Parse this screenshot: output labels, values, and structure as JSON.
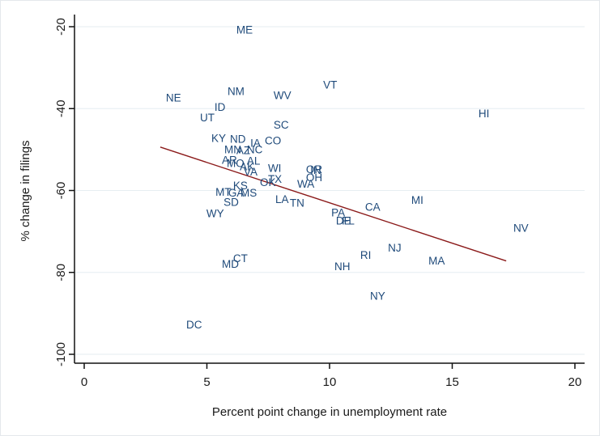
{
  "chart_data": {
    "type": "scatter",
    "title": "",
    "xlabel": "Percent point change in unemployment rate",
    "ylabel": "% change in filings",
    "xlim": [
      0,
      20
    ],
    "ylim": [
      -100,
      -20
    ],
    "xticks": [
      "0",
      "5",
      "10",
      "15",
      "20"
    ],
    "xtick_values": [
      0,
      5,
      10,
      15,
      20
    ],
    "yticks": [
      "-20",
      "-40",
      "-60",
      "-80",
      "-100"
    ],
    "ytick_values": [
      -20,
      -40,
      -60,
      -80,
      -100
    ],
    "grid": "horizontal",
    "marker": "state-abbreviation labels",
    "label_color": "#1f4a7a",
    "fit_line": {
      "name": "Linear fit",
      "color": "#8b1a1a",
      "x": [
        3.1,
        17.2
      ],
      "y": [
        -49.4,
        -77.2
      ]
    },
    "points": [
      {
        "label": "ME",
        "x": 6.2,
        "y": -21.0
      },
      {
        "label": "NE",
        "x": 3.33,
        "y": -37.6
      },
      {
        "label": "NM",
        "x": 5.84,
        "y": -36.0
      },
      {
        "label": "WV",
        "x": 7.72,
        "y": -37.0
      },
      {
        "label": "VT",
        "x": 9.74,
        "y": -34.4
      },
      {
        "label": "HI",
        "x": 16.07,
        "y": -41.4
      },
      {
        "label": "ID",
        "x": 5.31,
        "y": -39.8
      },
      {
        "label": "UT",
        "x": 4.72,
        "y": -42.4
      },
      {
        "label": "SC",
        "x": 7.72,
        "y": -44.2
      },
      {
        "label": "KY",
        "x": 5.18,
        "y": -47.4
      },
      {
        "label": "ND",
        "x": 5.94,
        "y": -47.6
      },
      {
        "label": "IA",
        "x": 6.77,
        "y": -48.6
      },
      {
        "label": "CO",
        "x": 7.36,
        "y": -48.0
      },
      {
        "label": "MN",
        "x": 5.71,
        "y": -50.2
      },
      {
        "label": "AZ",
        "x": 6.2,
        "y": -50.4
      },
      {
        "label": "NC",
        "x": 6.63,
        "y": -50.2
      },
      {
        "label": "AR",
        "x": 5.61,
        "y": -52.8
      },
      {
        "label": "MO",
        "x": 5.81,
        "y": -53.6
      },
      {
        "label": "AL",
        "x": 6.63,
        "y": -53.0
      },
      {
        "label": "AK",
        "x": 6.34,
        "y": -54.4
      },
      {
        "label": "VA",
        "x": 6.5,
        "y": -55.6
      },
      {
        "label": "WI",
        "x": 7.49,
        "y": -54.8
      },
      {
        "label": "TX",
        "x": 7.49,
        "y": -57.4
      },
      {
        "label": "OK",
        "x": 7.16,
        "y": -58.2
      },
      {
        "label": "OR",
        "x": 9.04,
        "y": -55.0
      },
      {
        "label": "IN",
        "x": 9.21,
        "y": -55.2
      },
      {
        "label": "OH",
        "x": 9.04,
        "y": -57.0
      },
      {
        "label": "WA",
        "x": 8.68,
        "y": -58.6
      },
      {
        "label": "KS",
        "x": 6.07,
        "y": -59.0
      },
      {
        "label": "MT",
        "x": 5.35,
        "y": -60.6
      },
      {
        "label": "GA",
        "x": 5.87,
        "y": -60.8
      },
      {
        "label": "MS",
        "x": 6.37,
        "y": -60.8
      },
      {
        "label": "SD",
        "x": 5.68,
        "y": -63.0
      },
      {
        "label": "LA",
        "x": 7.79,
        "y": -62.4
      },
      {
        "label": "TN",
        "x": 8.38,
        "y": -63.2
      },
      {
        "label": "WY",
        "x": 4.98,
        "y": -65.8
      },
      {
        "label": "MI",
        "x": 13.33,
        "y": -62.6
      },
      {
        "label": "CA",
        "x": 11.45,
        "y": -64.2
      },
      {
        "label": "PA",
        "x": 10.07,
        "y": -65.6
      },
      {
        "label": "DE",
        "x": 10.26,
        "y": -67.6
      },
      {
        "label": "FL",
        "x": 10.5,
        "y": -67.6
      },
      {
        "label": "NV",
        "x": 17.49,
        "y": -69.4
      },
      {
        "label": "NJ",
        "x": 12.38,
        "y": -74.2
      },
      {
        "label": "RI",
        "x": 11.25,
        "y": -76.0
      },
      {
        "label": "MA",
        "x": 14.03,
        "y": -77.4
      },
      {
        "label": "CT",
        "x": 6.07,
        "y": -76.8
      },
      {
        "label": "MD",
        "x": 5.61,
        "y": -78.2
      },
      {
        "label": "NH",
        "x": 10.2,
        "y": -78.8
      },
      {
        "label": "NY",
        "x": 11.65,
        "y": -86.0
      },
      {
        "label": "DC",
        "x": 4.16,
        "y": -93.0
      }
    ]
  }
}
